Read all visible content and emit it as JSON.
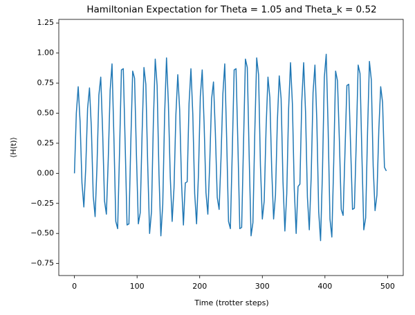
{
  "chart_data": {
    "type": "line",
    "title": "Hamiltonian Expectation for Theta = 1.05 and Theta_k = 0.52",
    "x_label": "Time (trotter steps)",
    "y_label": "⟨H(t)⟩",
    "color": "#1f77b4",
    "xlim": [
      -25,
      525
    ],
    "ylim": [
      -0.85,
      1.28
    ],
    "xticks": [
      0,
      100,
      200,
      300,
      400,
      500
    ],
    "yticks": [
      {
        "value": -0.75,
        "label": "−0.75"
      },
      {
        "value": -0.5,
        "label": "−0.50"
      },
      {
        "value": -0.25,
        "label": "−0.25"
      },
      {
        "value": 0,
        "label": "0.00"
      },
      {
        "value": 0.25,
        "label": "0.25"
      },
      {
        "value": 0.5,
        "label": "0.50"
      },
      {
        "value": 0.75,
        "label": "0.75"
      },
      {
        "value": 1,
        "label": "1.00"
      },
      {
        "value": 1.25,
        "label": "1.25"
      }
    ],
    "x": [
      0,
      3,
      6,
      9,
      12,
      15,
      18,
      21,
      24,
      27,
      30,
      33,
      36,
      39,
      42,
      45,
      48,
      51,
      54,
      57,
      60,
      63,
      66,
      69,
      72,
      75,
      78,
      81,
      84,
      87,
      90,
      93,
      96,
      99,
      102,
      105,
      108,
      111,
      114,
      117,
      120,
      123,
      126,
      129,
      132,
      135,
      138,
      141,
      144,
      147,
      150,
      153,
      156,
      159,
      162,
      165,
      168,
      171,
      174,
      177,
      180,
      183,
      186,
      189,
      192,
      195,
      198,
      201,
      204,
      207,
      210,
      213,
      216,
      219,
      222,
      225,
      228,
      231,
      234,
      237,
      240,
      243,
      246,
      249,
      252,
      255,
      258,
      261,
      264,
      267,
      270,
      273,
      276,
      279,
      282,
      285,
      288,
      291,
      294,
      297,
      300,
      303,
      306,
      309,
      312,
      315,
      318,
      321,
      324,
      327,
      330,
      333,
      336,
      339,
      342,
      345,
      348,
      351,
      354,
      357,
      360,
      363,
      366,
      369,
      372,
      375,
      378,
      381,
      384,
      387,
      390,
      393,
      396,
      399,
      402,
      405,
      408,
      411,
      414,
      417,
      420,
      423,
      426,
      429,
      432,
      435,
      438,
      441,
      444,
      447,
      450,
      453,
      456,
      459,
      462,
      465,
      468,
      471,
      474,
      477,
      480,
      483,
      486,
      489,
      492,
      495,
      498
    ],
    "values": [
      0.0,
      0.5,
      0.72,
      0.43,
      -0.08,
      -0.28,
      0.04,
      0.54,
      0.71,
      0.38,
      -0.19,
      -0.36,
      0.06,
      0.65,
      0.8,
      0.35,
      -0.23,
      -0.34,
      0.12,
      0.69,
      0.91,
      0.3,
      -0.4,
      -0.46,
      0.18,
      0.86,
      0.87,
      0.24,
      -0.43,
      -0.42,
      0.26,
      0.85,
      0.79,
      0.15,
      -0.42,
      -0.33,
      0.33,
      0.88,
      0.74,
      0.07,
      -0.5,
      -0.32,
      0.42,
      0.95,
      0.73,
      -0.01,
      -0.52,
      -0.26,
      0.49,
      0.96,
      0.58,
      -0.03,
      -0.4,
      -0.12,
      0.49,
      0.82,
      0.53,
      -0.08,
      -0.43,
      -0.08,
      -0.07,
      0.58,
      0.87,
      0.49,
      -0.17,
      -0.42,
      -0.01,
      0.64,
      0.86,
      0.42,
      -0.16,
      -0.34,
      0.08,
      0.62,
      0.76,
      0.34,
      -0.2,
      -0.3,
      0.12,
      0.66,
      0.91,
      0.3,
      -0.4,
      -0.46,
      0.18,
      0.86,
      0.87,
      0.24,
      -0.46,
      -0.45,
      0.26,
      0.95,
      0.88,
      0.14,
      -0.52,
      -0.41,
      0.35,
      0.96,
      0.82,
      0.06,
      -0.38,
      -0.23,
      0.38,
      0.8,
      0.63,
      0.03,
      -0.38,
      -0.18,
      0.43,
      0.81,
      0.62,
      -0.07,
      -0.48,
      -0.17,
      0.54,
      0.92,
      0.58,
      -0.13,
      -0.5,
      -0.11,
      -0.09,
      0.6,
      0.92,
      0.51,
      -0.2,
      -0.47,
      -0.03,
      0.67,
      0.9,
      0.44,
      -0.32,
      -0.56,
      0.01,
      0.8,
      0.99,
      0.39,
      -0.38,
      -0.53,
      0.09,
      0.85,
      0.77,
      0.28,
      -0.3,
      -0.35,
      0.18,
      0.73,
      0.74,
      0.22,
      -0.3,
      -0.29,
      0.26,
      0.9,
      0.83,
      0.15,
      -0.47,
      -0.37,
      0.34,
      0.93,
      0.78,
      0.06,
      -0.31,
      -0.18,
      0.36,
      0.72,
      0.59,
      0.05,
      0.02
    ]
  }
}
